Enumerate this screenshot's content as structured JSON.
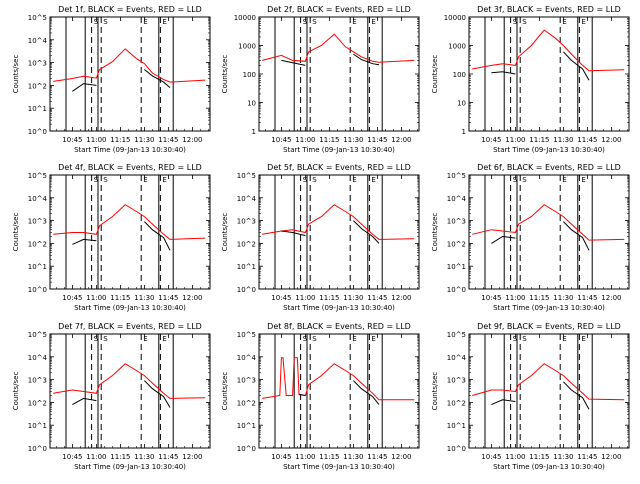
{
  "figure": {
    "background": "#ffffff",
    "axis_color": "#000000",
    "events_color": "#000000",
    "lld_color": "#ff0000",
    "y_axis_label": "Counts/sec",
    "x_axis_label": "Start Time (09-Jan-13 10:30:40)",
    "x_tick_labels": [
      "10:45",
      "11:00",
      "11:15",
      "11:30",
      "11:45",
      "12:00"
    ],
    "marker_labels": [
      "S",
      "S",
      "E",
      "E"
    ]
  },
  "chart_data": [
    {
      "type": "line",
      "title": "Det 1f, BLACK = Events, RED = LLD",
      "ylabel": "Counts/sec",
      "xlabel": "Start Time (09-Jan-13 10:30:40)",
      "y_scale": "log",
      "ylim": [
        1,
        100000
      ],
      "y_tick_labels": [
        "10^0",
        "10^1",
        "10^2",
        "10^3",
        "10^4",
        "10^5"
      ],
      "x": [
        "10:33",
        "10:45",
        "10:52",
        "11:00",
        "11:02",
        "11:10",
        "11:18",
        "11:25",
        "11:30",
        "11:35",
        "11:42",
        "11:46",
        "12:08"
      ],
      "series": [
        {
          "name": "RED",
          "color": "#ff0000",
          "values": [
            150,
            200,
            250,
            210,
            500,
            1100,
            4000,
            1500,
            900,
            350,
            180,
            140,
            170
          ]
        },
        {
          "name": "BLACK",
          "color": "#000000",
          "values": [
            null,
            55,
            120,
            100,
            null,
            null,
            null,
            null,
            500,
            260,
            140,
            80,
            null
          ]
        }
      ]
    },
    {
      "type": "line",
      "title": "Det 2f, BLACK = Events, RED = LLD",
      "ylabel": "Counts/sec",
      "xlabel": "Start Time (09-Jan-13 10:30:40)",
      "y_scale": "log",
      "ylim": [
        1,
        10000
      ],
      "y_tick_labels": [
        "1",
        "10",
        "100",
        "1000",
        "10000"
      ],
      "x": [
        "10:33",
        "10:45",
        "10:52",
        "11:00",
        "11:02",
        "11:10",
        "11:18",
        "11:25",
        "11:30",
        "11:35",
        "11:42",
        "11:46",
        "12:08"
      ],
      "series": [
        {
          "name": "RED",
          "color": "#ff0000",
          "values": [
            300,
            450,
            300,
            280,
            600,
            1000,
            2500,
            900,
            600,
            400,
            280,
            260,
            300
          ]
        },
        {
          "name": "BLACK",
          "color": "#000000",
          "values": [
            null,
            300,
            250,
            200,
            null,
            null,
            null,
            null,
            500,
            320,
            230,
            210,
            null
          ]
        }
      ]
    },
    {
      "type": "line",
      "title": "Det 3f, BLACK = Events, RED = LLD",
      "ylabel": "Counts/sec",
      "xlabel": "Start Time (09-Jan-13 10:30:40)",
      "y_scale": "log",
      "ylim": [
        1,
        10000
      ],
      "y_tick_labels": [
        "1",
        "10",
        "100",
        "1000",
        "10000"
      ],
      "x": [
        "10:33",
        "10:45",
        "10:52",
        "11:00",
        "11:02",
        "11:10",
        "11:18",
        "11:25",
        "11:30",
        "11:35",
        "11:42",
        "11:46",
        "12:08"
      ],
      "series": [
        {
          "name": "RED",
          "color": "#ff0000",
          "values": [
            150,
            200,
            230,
            200,
            400,
            1000,
            3500,
            1800,
            1000,
            500,
            200,
            130,
            140
          ]
        },
        {
          "name": "BLACK",
          "color": "#000000",
          "values": [
            null,
            110,
            120,
            100,
            null,
            null,
            null,
            null,
            600,
            300,
            150,
            60,
            null
          ]
        }
      ]
    },
    {
      "type": "line",
      "title": "Det 4f, BLACK = Events, RED = LLD",
      "ylabel": "Counts/sec",
      "xlabel": "Start Time (09-Jan-13 10:30:40)",
      "y_scale": "log",
      "ylim": [
        1,
        100000
      ],
      "y_tick_labels": [
        "10^0",
        "10^1",
        "10^2",
        "10^3",
        "10^4",
        "10^5"
      ],
      "x": [
        "10:33",
        "10:45",
        "10:52",
        "11:00",
        "11:02",
        "11:10",
        "11:18",
        "11:25",
        "11:30",
        "11:35",
        "11:42",
        "11:46",
        "12:08"
      ],
      "series": [
        {
          "name": "RED",
          "color": "#ff0000",
          "values": [
            250,
            300,
            300,
            250,
            600,
            1500,
            5000,
            2500,
            1500,
            700,
            250,
            150,
            170
          ]
        },
        {
          "name": "BLACK",
          "color": "#000000",
          "values": [
            null,
            90,
            150,
            130,
            null,
            null,
            null,
            null,
            900,
            400,
            180,
            50,
            null
          ]
        }
      ]
    },
    {
      "type": "line",
      "title": "Det 5f, BLACK = Events, RED = LLD",
      "ylabel": "Counts/sec",
      "xlabel": "Start Time (09-Jan-13 10:30:40)",
      "y_scale": "log",
      "ylim": [
        1,
        100000
      ],
      "y_tick_labels": [
        "10^0",
        "10^1",
        "10^2",
        "10^3",
        "10^4",
        "10^5"
      ],
      "x": [
        "10:33",
        "10:45",
        "10:52",
        "11:00",
        "11:02",
        "11:10",
        "11:18",
        "11:25",
        "11:30",
        "11:35",
        "11:42",
        "11:46",
        "12:08"
      ],
      "series": [
        {
          "name": "RED",
          "color": "#ff0000",
          "values": [
            250,
            350,
            400,
            300,
            700,
            1500,
            5000,
            2500,
            1500,
            700,
            250,
            150,
            160
          ]
        },
        {
          "name": "BLACK",
          "color": "#000000",
          "values": [
            null,
            350,
            300,
            220,
            null,
            null,
            null,
            null,
            1000,
            450,
            200,
            100,
            null
          ]
        }
      ]
    },
    {
      "type": "line",
      "title": "Det 6f, BLACK = Events, RED = LLD",
      "ylabel": "Counts/sec",
      "xlabel": "Start Time (09-Jan-13 10:30:40)",
      "y_scale": "log",
      "ylim": [
        1,
        100000
      ],
      "y_tick_labels": [
        "10^0",
        "10^1",
        "10^2",
        "10^3",
        "10^4",
        "10^5"
      ],
      "x": [
        "10:33",
        "10:45",
        "10:52",
        "11:00",
        "11:02",
        "11:10",
        "11:18",
        "11:25",
        "11:30",
        "11:35",
        "11:42",
        "11:46",
        "12:08"
      ],
      "series": [
        {
          "name": "RED",
          "color": "#ff0000",
          "values": [
            250,
            400,
            350,
            300,
            700,
            1500,
            5000,
            2500,
            1500,
            700,
            250,
            140,
            150
          ]
        },
        {
          "name": "BLACK",
          "color": "#000000",
          "values": [
            null,
            100,
            200,
            170,
            null,
            null,
            null,
            null,
            900,
            400,
            180,
            50,
            null
          ]
        }
      ]
    },
    {
      "type": "line",
      "title": "Det 7f, BLACK = Events, RED = LLD",
      "ylabel": "Counts/sec",
      "xlabel": "Start Time (09-Jan-13 10:30:40)",
      "y_scale": "log",
      "ylim": [
        1,
        100000
      ],
      "y_tick_labels": [
        "10^0",
        "10^1",
        "10^2",
        "10^3",
        "10^4",
        "10^5"
      ],
      "x": [
        "10:33",
        "10:45",
        "10:52",
        "11:00",
        "11:02",
        "11:10",
        "11:18",
        "11:25",
        "11:30",
        "11:35",
        "11:42",
        "11:46",
        "12:08"
      ],
      "series": [
        {
          "name": "RED",
          "color": "#ff0000",
          "values": [
            250,
            350,
            300,
            250,
            600,
            1500,
            5000,
            2500,
            1500,
            700,
            250,
            150,
            160
          ]
        },
        {
          "name": "BLACK",
          "color": "#000000",
          "values": [
            null,
            80,
            150,
            120,
            null,
            null,
            null,
            null,
            900,
            400,
            180,
            60,
            null
          ]
        }
      ]
    },
    {
      "type": "line",
      "title": "Det 8f, BLACK = Events, RED = LLD",
      "ylabel": "Counts/sec",
      "xlabel": "Start Time (09-Jan-13 10:30:40)",
      "y_scale": "log",
      "ylim": [
        1,
        100000
      ],
      "y_tick_labels": [
        "10^0",
        "10^1",
        "10^2",
        "10^3",
        "10^4",
        "10^5"
      ],
      "x": [
        "10:33",
        "10:44",
        "10:45",
        "10:46",
        "10:48",
        "10:52",
        "10:53",
        "10:55",
        "10:56",
        "11:00",
        "11:02",
        "11:10",
        "11:18",
        "11:25",
        "11:30",
        "11:35",
        "11:42",
        "11:46",
        "12:08"
      ],
      "series": [
        {
          "name": "RED",
          "color": "#ff0000",
          "values": [
            150,
            200,
            9000,
            9000,
            200,
            200,
            9000,
            9000,
            220,
            200,
            600,
            1500,
            5000,
            2500,
            1500,
            700,
            250,
            130,
            130
          ]
        },
        {
          "name": "BLACK",
          "color": "#000000",
          "values": [
            null,
            null,
            null,
            null,
            null,
            230,
            null,
            null,
            230,
            200,
            null,
            null,
            null,
            null,
            900,
            400,
            180,
            80,
            null
          ]
        }
      ]
    },
    {
      "type": "line",
      "title": "Det 9f, BLACK = Events, RED = LLD",
      "ylabel": "Counts/sec",
      "xlabel": "Start Time (09-Jan-13 10:30:40)",
      "y_scale": "log",
      "ylim": [
        1,
        100000
      ],
      "y_tick_labels": [
        "10^0",
        "10^1",
        "10^2",
        "10^3",
        "10^4",
        "10^5"
      ],
      "x": [
        "10:33",
        "10:45",
        "10:52",
        "11:00",
        "11:02",
        "11:10",
        "11:18",
        "11:25",
        "11:30",
        "11:35",
        "11:42",
        "11:46",
        "12:08"
      ],
      "series": [
        {
          "name": "RED",
          "color": "#ff0000",
          "values": [
            200,
            350,
            350,
            300,
            600,
            1500,
            5000,
            2500,
            1500,
            700,
            250,
            140,
            130
          ]
        },
        {
          "name": "BLACK",
          "color": "#000000",
          "values": [
            null,
            80,
            130,
            110,
            null,
            null,
            null,
            null,
            800,
            350,
            160,
            50,
            null
          ]
        }
      ]
    }
  ]
}
